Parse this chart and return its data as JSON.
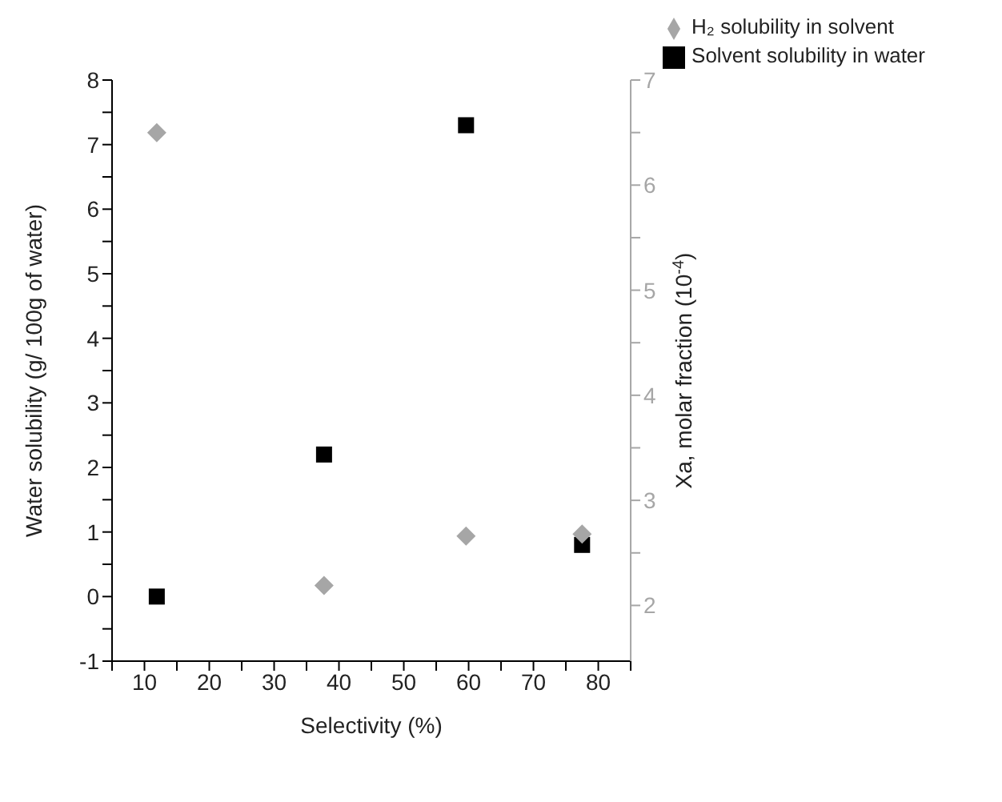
{
  "chart_data": {
    "type": "scatter",
    "xlabel": "Selectivity (%)",
    "ylabel": "Water solubility (g/ 100g of water)",
    "y2label": "Xa, molar fraction (10$^{-4}$)",
    "xlim": [
      5,
      85
    ],
    "xticks": [
      {
        "value": 5,
        "label": null
      },
      10,
      {
        "value": 15,
        "label": null
      },
      20,
      {
        "value": 25,
        "label": null
      },
      30,
      {
        "value": 35,
        "label": null
      },
      40,
      {
        "value": 45,
        "label": null
      },
      50,
      {
        "value": 55,
        "label": null
      },
      60,
      {
        "value": 65,
        "label": null
      },
      70,
      {
        "value": 75,
        "label": null
      },
      80,
      {
        "value": 85,
        "label": null
      }
    ],
    "ylim": [
      -1,
      8
    ],
    "yticks": [
      -1,
      {
        "value": -0.5,
        "label": null
      },
      0,
      {
        "value": 0.5,
        "label": null
      },
      1,
      {
        "value": 1.5,
        "label": null
      },
      2,
      {
        "value": 2.5,
        "label": null
      },
      3,
      {
        "value": 3.5,
        "label": null
      },
      4,
      {
        "value": 4.5,
        "label": null
      },
      5,
      {
        "value": 5.5,
        "label": null
      },
      6,
      {
        "value": 6.5,
        "label": null
      },
      7,
      {
        "value": 7.5,
        "label": null
      },
      8
    ],
    "y2lim": [
      1.47,
      7
    ],
    "y2ticks": [
      2,
      {
        "value": 2.5,
        "label": null
      },
      3,
      {
        "value": 3.5,
        "label": null
      },
      4,
      {
        "value": 4.5,
        "label": null
      },
      5,
      {
        "value": 5.5,
        "label": null
      },
      6,
      {
        "value": 6.5,
        "label": null
      },
      7
    ],
    "legend": "top right",
    "grid": false,
    "series": [
      {
        "name": "Solvent solubility in water",
        "color": "#000000",
        "marker": "square",
        "x": [
          11.9,
          37.7,
          59.6,
          77.5
        ],
        "values": [
          0,
          2.2,
          7.3,
          0.8
        ]
      },
      {
        "name": "H₂ solubility in solvent",
        "color": "#a6a6a6",
        "marker": "diamond",
        "axis": "y2",
        "x": [
          11.9,
          37.7,
          59.6,
          77.5
        ],
        "values": [
          6.5,
          2.19,
          2.66,
          2.68
        ]
      }
    ]
  }
}
